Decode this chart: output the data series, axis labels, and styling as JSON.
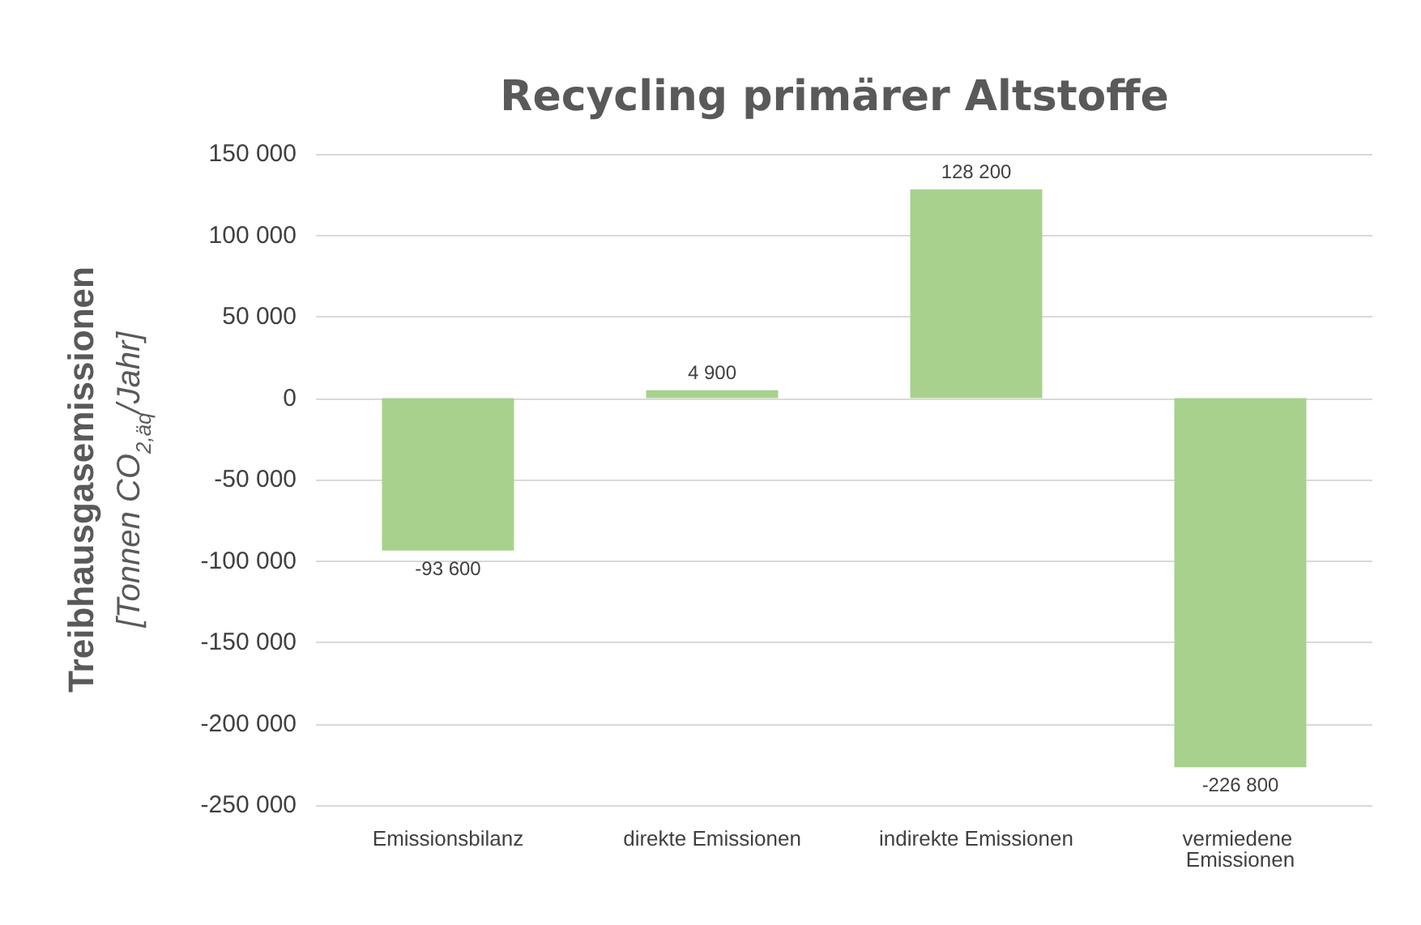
{
  "chart_data": {
    "type": "bar",
    "title": "Recycling primärer Altstoffe",
    "ylabel": "Treibhausgasemissionen\n[Tonnen CO$_{2,äq}$/Jahr]",
    "categories": [
      "Emissionsbilanz",
      "direkte Emissionen",
      "indirekte Emissionen",
      "vermiedene Emissionen"
    ],
    "values": [
      -93600,
      4900,
      128200,
      -226800
    ],
    "value_labels": [
      "-93 600",
      "4 900",
      "128 200",
      "-226 800"
    ],
    "color": "#a9d18e",
    "ylim": [
      -250000,
      150000
    ],
    "yticks": [
      {
        "value": -250000,
        "label": "-250 000"
      },
      {
        "value": -200000,
        "label": "-200 000"
      },
      {
        "value": -150000,
        "label": "-150 000"
      },
      {
        "value": -100000,
        "label": "-100 000"
      },
      {
        "value": -50000,
        "label": "-50 000"
      },
      {
        "value": 0,
        "label": "0"
      },
      {
        "value": 50000,
        "label": "50 000"
      },
      {
        "value": 100000,
        "label": "100 000"
      },
      {
        "value": 150000,
        "label": "150 000"
      }
    ],
    "grid": true
  }
}
